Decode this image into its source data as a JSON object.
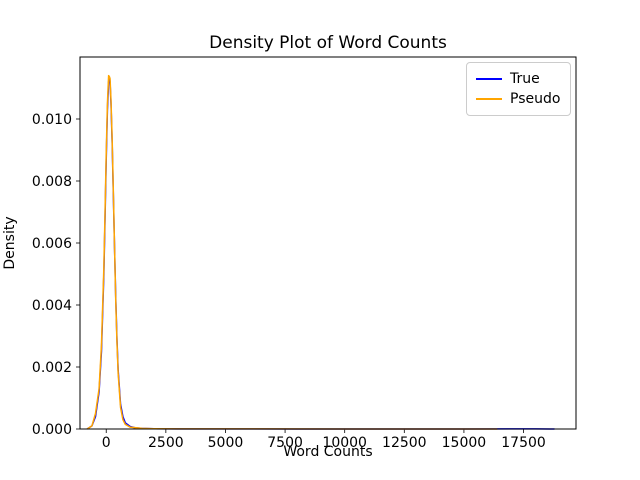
{
  "figure": {
    "title": "Density Plot of Word Counts",
    "xlabel": "Word Counts",
    "ylabel": "Density"
  },
  "legend": {
    "position": "upper right",
    "entries": [
      {
        "label": "True",
        "color": "#0000ff"
      },
      {
        "label": "Pseudo",
        "color": "#ffa500"
      }
    ]
  },
  "chart_data": {
    "type": "line",
    "title": "Density Plot of Word Counts",
    "xlabel": "Word Counts",
    "ylabel": "Density",
    "xlim": [
      -1100,
      19700
    ],
    "ylim": [
      0,
      0.012
    ],
    "grid": false,
    "x_ticks": [
      0,
      2500,
      5000,
      7500,
      10000,
      12500,
      15000,
      17500
    ],
    "x_tick_labels": [
      "0",
      "2500",
      "5000",
      "7500",
      "10000",
      "12500",
      "15000",
      "17500"
    ],
    "y_ticks": [
      0.0,
      0.002,
      0.004,
      0.006,
      0.008,
      0.01
    ],
    "y_tick_labels": [
      "0.000",
      "0.002",
      "0.004",
      "0.006",
      "0.008",
      "0.010"
    ],
    "legend_position": "upper right",
    "series": [
      {
        "name": "True",
        "color": "#0000ff",
        "peak": {
          "x": 130,
          "y": 0.01135
        },
        "points": [
          [
            -800,
            0.0
          ],
          [
            -600,
            0.0001
          ],
          [
            -450,
            0.0004
          ],
          [
            -300,
            0.0012
          ],
          [
            -200,
            0.0025
          ],
          [
            -100,
            0.005
          ],
          [
            -50,
            0.0068
          ],
          [
            0,
            0.0087
          ],
          [
            50,
            0.0103
          ],
          [
            100,
            0.0112
          ],
          [
            130,
            0.01135
          ],
          [
            160,
            0.0112
          ],
          [
            200,
            0.0105
          ],
          [
            250,
            0.0092
          ],
          [
            300,
            0.0075
          ],
          [
            350,
            0.0058
          ],
          [
            400,
            0.0042
          ],
          [
            450,
            0.0029
          ],
          [
            500,
            0.0019
          ],
          [
            600,
            0.0008
          ],
          [
            700,
            0.0004
          ],
          [
            800,
            0.0002
          ],
          [
            1000,
            8e-05
          ],
          [
            1200,
            4e-05
          ],
          [
            1500,
            2e-05
          ],
          [
            2000,
            1e-05
          ],
          [
            3000,
            5e-06
          ],
          [
            5000,
            3e-06
          ],
          [
            8000,
            2e-06
          ],
          [
            12000,
            2e-06
          ],
          [
            15000,
            2e-06
          ],
          [
            17000,
            3e-06
          ],
          [
            18000,
            4e-06
          ],
          [
            18600,
            2e-06
          ],
          [
            18800,
            0.0
          ]
        ]
      },
      {
        "name": "Pseudo",
        "color": "#ffa500",
        "peak": {
          "x": 130,
          "y": 0.01137
        },
        "points": [
          [
            -800,
            0.0
          ],
          [
            -600,
            0.0001
          ],
          [
            -450,
            0.0005
          ],
          [
            -300,
            0.0013
          ],
          [
            -200,
            0.0027
          ],
          [
            -100,
            0.0052
          ],
          [
            -50,
            0.007
          ],
          [
            0,
            0.0089
          ],
          [
            50,
            0.0105
          ],
          [
            100,
            0.0114
          ],
          [
            130,
            0.01137
          ],
          [
            160,
            0.0113
          ],
          [
            200,
            0.0106
          ],
          [
            250,
            0.0093
          ],
          [
            300,
            0.0076
          ],
          [
            350,
            0.0058
          ],
          [
            400,
            0.0041
          ],
          [
            450,
            0.0028
          ],
          [
            500,
            0.0018
          ],
          [
            600,
            0.0007
          ],
          [
            700,
            0.0003
          ],
          [
            800,
            0.00015
          ],
          [
            1000,
            6e-05
          ],
          [
            1500,
            2e-05
          ],
          [
            2000,
            1e-05
          ],
          [
            3000,
            5e-06
          ],
          [
            6000,
            3e-06
          ],
          [
            10000,
            2e-06
          ],
          [
            14000,
            2e-06
          ],
          [
            16000,
            2e-06
          ],
          [
            16400,
            0.0
          ]
        ]
      }
    ]
  },
  "layout_colors": {
    "axes_edge": "#000000",
    "background": "#ffffff",
    "tick_label": "#000000"
  }
}
